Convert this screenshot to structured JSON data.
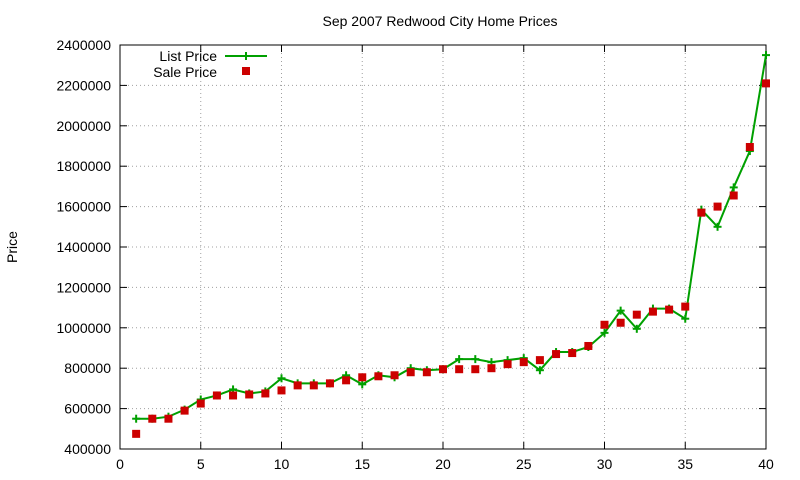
{
  "chart_data": {
    "type": "line",
    "title": "Sep 2007 Redwood City Home Prices",
    "xlabel": "",
    "ylabel": "Price",
    "xlim": [
      0,
      40
    ],
    "ylim": [
      400000,
      2400000
    ],
    "x_ticks": [
      "0",
      "5",
      "10",
      "15",
      "20",
      "25",
      "30",
      "35",
      "40"
    ],
    "y_ticks": [
      "400000",
      "600000",
      "800000",
      "1000000",
      "1200000",
      "1400000",
      "1600000",
      "1800000",
      "2000000",
      "2200000",
      "2400000"
    ],
    "grid": true,
    "legend_position": "top-left",
    "x": [
      1,
      2,
      3,
      4,
      5,
      6,
      7,
      8,
      9,
      10,
      11,
      12,
      13,
      14,
      15,
      16,
      17,
      18,
      19,
      20,
      21,
      22,
      23,
      24,
      25,
      26,
      27,
      28,
      29,
      30,
      31,
      32,
      33,
      34,
      35,
      36,
      37,
      38,
      39,
      40
    ],
    "series": [
      {
        "name": "List Price",
        "style": "line-plus",
        "color": "#00a000",
        "values": [
          550000,
          550000,
          560000,
          595000,
          645000,
          665000,
          695000,
          675000,
          685000,
          750000,
          725000,
          725000,
          725000,
          765000,
          720000,
          765000,
          755000,
          800000,
          790000,
          795000,
          845000,
          845000,
          830000,
          840000,
          850000,
          790000,
          880000,
          880000,
          905000,
          975000,
          1085000,
          995000,
          1095000,
          1095000,
          1045000,
          1585000,
          1500000,
          1695000,
          1875000,
          2350000
        ]
      },
      {
        "name": "Sale Price",
        "style": "points-square",
        "color": "#cc0000",
        "values": [
          475000,
          550000,
          550000,
          590000,
          625000,
          665000,
          665000,
          670000,
          675000,
          690000,
          715000,
          715000,
          725000,
          740000,
          755000,
          760000,
          765000,
          780000,
          780000,
          795000,
          795000,
          795000,
          800000,
          820000,
          830000,
          840000,
          870000,
          875000,
          910000,
          1015000,
          1025000,
          1065000,
          1080000,
          1090000,
          1105000,
          1570000,
          1600000,
          1655000,
          1895000,
          2210000
        ]
      }
    ]
  }
}
